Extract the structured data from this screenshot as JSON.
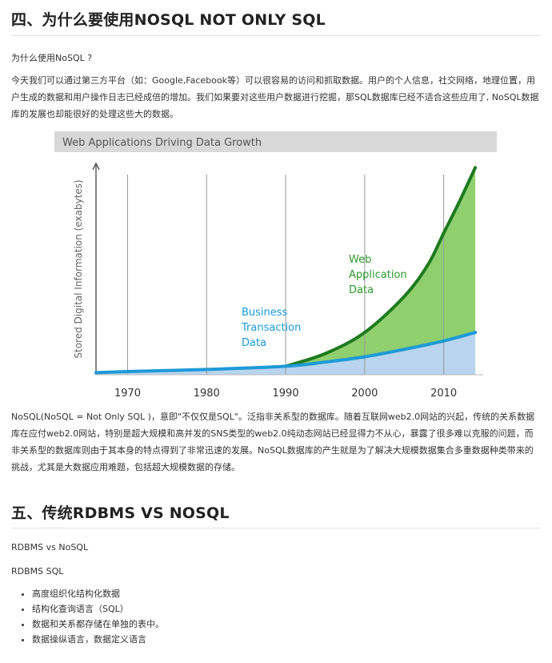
{
  "section4": {
    "heading": "四、为什么要使用NOSQL   NOT ONLY SQL",
    "question": "为什么使用NoSQL ?",
    "intro": "今天我们可以通过第三方平台（如：Google,Facebook等）可以很容易的访问和抓取数据。用户的个人信息，社交网络，地理位置，用户生成的数据和用户操作日志已经成倍的增加。我们如果要对这些用户数据进行挖掘，那SQL数据库已经不适合这些应用了, NoSQL数据库的发展也却能很好的处理这些大的数据。",
    "after_chart": "NoSQL(NoSQL = Not Only SQL )，意即\"不仅仅是SQL\"。泛指非关系型的数据库。随着互联网web2.0网站的兴起，传统的关系数据库在应付web2.0网站，特别是超大规模和高并发的SNS类型的web2.0纯动态网站已经显得力不从心，暴露了很多难以克服的问题，而非关系型的数据库则由于其本身的特点得到了非常迅速的发展。NoSQL数据库的产生就是为了解决大规模数据集合多重数据种类带来的挑战，尤其是大数据应用难题，包括超大规模数据的存储。"
  },
  "section5": {
    "heading": "五、传统RDBMS VS NOSQL",
    "line1": "RDBMS vs NoSQL",
    "line2": "RDBMS SQL",
    "bullets": [
      "高度组织化结构化数据",
      "结构化查询语言（SQL）",
      "数据和关系都存储在单独的表中。",
      "数据操纵语言，数据定义语言"
    ]
  },
  "chart_data": {
    "type": "area",
    "title": "Web Applications Driving Data Growth",
    "ylabel": "Stored Digital Information (exabytes)",
    "xlabel": "",
    "x_ticks": [
      "1970",
      "1980",
      "1990",
      "2000",
      "2010"
    ],
    "xlim": [
      1966,
      2015
    ],
    "ylim": [
      0,
      100
    ],
    "grid": "vertical",
    "series": [
      {
        "name": "Business Transaction Data",
        "color": "#1e9ad6",
        "fill": "#b8d4ee",
        "points": [
          [
            1966,
            1
          ],
          [
            1970,
            1.5
          ],
          [
            1980,
            2.5
          ],
          [
            1990,
            4
          ],
          [
            1995,
            6
          ],
          [
            2000,
            8.5
          ],
          [
            2005,
            12
          ],
          [
            2010,
            16
          ],
          [
            2014,
            20
          ]
        ]
      },
      {
        "name": "Web Application Data",
        "color": "#1e7a1e",
        "fill": "#8fcf6e",
        "points": [
          [
            1990,
            4
          ],
          [
            1995,
            10
          ],
          [
            2000,
            20
          ],
          [
            2005,
            37
          ],
          [
            2008,
            52
          ],
          [
            2010,
            67
          ],
          [
            2012,
            82
          ],
          [
            2014,
            98
          ]
        ]
      }
    ],
    "annotations": [
      {
        "series": "Business Transaction Data",
        "lines": [
          "Business",
          "Transaction",
          "Data"
        ]
      },
      {
        "series": "Web Application Data",
        "lines": [
          "Web",
          "Application",
          "Data"
        ]
      }
    ]
  }
}
